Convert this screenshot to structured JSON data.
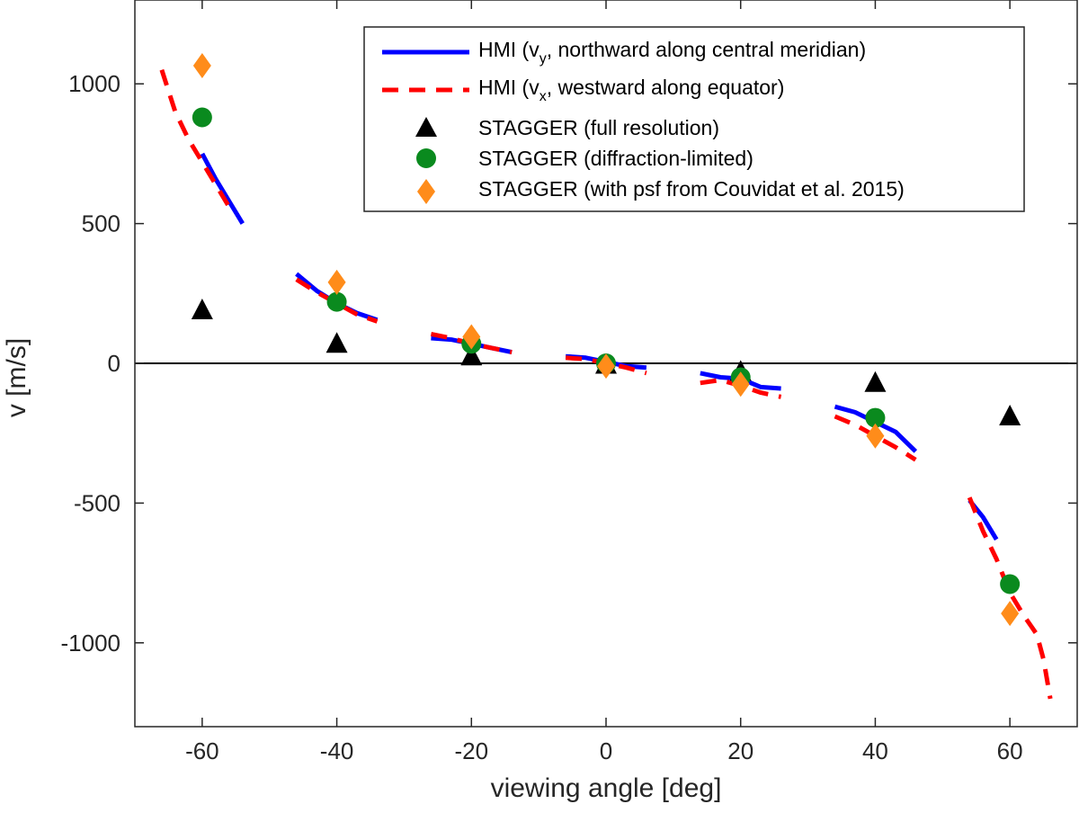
{
  "chart_data": {
    "type": "scatter",
    "title": "",
    "xlabel": "viewing angle [deg]",
    "ylabel": "v [m/s]",
    "xlim": [
      -70,
      70
    ],
    "ylim": [
      -1300,
      1300
    ],
    "xticks": [
      -60,
      -40,
      -20,
      0,
      20,
      40,
      60
    ],
    "yticks": [
      -1000,
      -500,
      0,
      500,
      1000
    ],
    "zero_line": true,
    "legend_position": "top-right",
    "line_series": [
      {
        "name": "HMI (v_y, northward along central meridian)",
        "legend": {
          "pre": "HMI (v",
          "sub": "y",
          "post": ", northward along central meridian)"
        },
        "color": "#0000ff",
        "style": "solid",
        "segments": [
          [
            [
              -60,
              750
            ],
            [
              -58,
              660
            ],
            [
              -56,
              580
            ],
            [
              -54,
              500
            ]
          ],
          [
            [
              -46,
              320
            ],
            [
              -43,
              260
            ],
            [
              -40,
              215
            ],
            [
              -37,
              180
            ],
            [
              -34,
              155
            ]
          ],
          [
            [
              -26,
              90
            ],
            [
              -23,
              85
            ],
            [
              -20,
              70
            ],
            [
              -17,
              55
            ],
            [
              -14,
              40
            ]
          ],
          [
            [
              -6,
              25
            ],
            [
              -3,
              20
            ],
            [
              0,
              5
            ],
            [
              3,
              -10
            ],
            [
              6,
              -15
            ]
          ],
          [
            [
              14,
              -35
            ],
            [
              17,
              -50
            ],
            [
              20,
              -55
            ],
            [
              23,
              -85
            ],
            [
              26,
              -90
            ]
          ],
          [
            [
              34,
              -155
            ],
            [
              37,
              -175
            ],
            [
              40,
              -210
            ],
            [
              43,
              -245
            ],
            [
              46,
              -315
            ]
          ],
          [
            [
              54,
              -490
            ],
            [
              56,
              -550
            ],
            [
              58,
              -630
            ]
          ]
        ]
      },
      {
        "name": "HMI (v_x, westward along equator)",
        "legend": {
          "pre": "HMI (v",
          "sub": "x",
          "post": ", westward along equator)"
        },
        "color": "#ff0000",
        "style": "dashed",
        "segments": [
          [
            [
              -66,
              1050
            ],
            [
              -64,
              900
            ],
            [
              -62,
              800
            ],
            [
              -60,
              720
            ],
            [
              -58,
              640
            ],
            [
              -56,
              560
            ]
          ],
          [
            [
              -46,
              300
            ],
            [
              -43,
              255
            ],
            [
              -40,
              215
            ],
            [
              -37,
              175
            ],
            [
              -34,
              150
            ]
          ],
          [
            [
              -26,
              105
            ],
            [
              -23,
              90
            ],
            [
              -20,
              70
            ],
            [
              -17,
              55
            ],
            [
              -14,
              40
            ]
          ],
          [
            [
              -6,
              20
            ],
            [
              -3,
              15
            ],
            [
              0,
              0
            ],
            [
              3,
              -15
            ],
            [
              6,
              -35
            ]
          ],
          [
            [
              14,
              -70
            ],
            [
              17,
              -60
            ],
            [
              20,
              -80
            ],
            [
              23,
              -105
            ],
            [
              26,
              -120
            ]
          ],
          [
            [
              34,
              -190
            ],
            [
              37,
              -220
            ],
            [
              40,
              -260
            ],
            [
              43,
              -300
            ],
            [
              46,
              -345
            ]
          ],
          [
            [
              54,
              -480
            ],
            [
              56,
              -600
            ],
            [
              58,
              -700
            ],
            [
              60,
              -820
            ],
            [
              62,
              -900
            ],
            [
              64,
              -970
            ],
            [
              65,
              -1060
            ],
            [
              66,
              -1200
            ]
          ]
        ]
      }
    ],
    "marker_series": [
      {
        "name": "STAGGER (full resolution)",
        "marker": "triangle",
        "color": "#000000",
        "x": [
          -60,
          -40,
          -20,
          0,
          20,
          40,
          60
        ],
        "y": [
          190,
          70,
          25,
          -5,
          -30,
          -70,
          -190
        ]
      },
      {
        "name": "STAGGER (diffraction-limited)",
        "marker": "circle",
        "color": "#0a8a1e",
        "x": [
          -60,
          -40,
          -20,
          0,
          20,
          40,
          60
        ],
        "y": [
          880,
          220,
          70,
          0,
          -50,
          -195,
          -790
        ]
      },
      {
        "name": "STAGGER (with psf from Couvidat et al. 2015)",
        "marker": "diamond",
        "color": "#ff8c1a",
        "x": [
          -60,
          -40,
          -20,
          0,
          20,
          40,
          60
        ],
        "y": [
          1065,
          290,
          95,
          -10,
          -75,
          -260,
          -895
        ]
      }
    ]
  }
}
